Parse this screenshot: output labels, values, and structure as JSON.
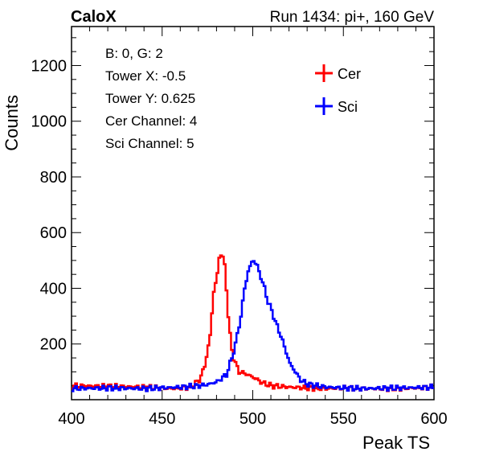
{
  "header": {
    "title": "CaloX",
    "run_label": "Run 1434: pi+, 160 GeV"
  },
  "info_box": {
    "lines": [
      "B: 0, G: 2",
      "Tower X: -0.5",
      "Tower Y: 0.625",
      "Cer Channel: 4",
      "Sci Channel: 5"
    ]
  },
  "chart_data": {
    "type": "line",
    "xlabel": "Peak TS",
    "ylabel": "Counts",
    "xlim": [
      400,
      600
    ],
    "ylim": [
      0,
      1340
    ],
    "x_ticks": [
      400,
      450,
      500,
      550,
      600
    ],
    "y_ticks": [
      200,
      400,
      600,
      800,
      1000,
      1200
    ],
    "grid": false,
    "legend_position": "top-right",
    "series": [
      {
        "name": "Cer",
        "color": "#ff0000",
        "x": [
          400,
          420,
          440,
          455,
          465,
          470,
          473,
          476,
          478,
          480,
          481,
          482,
          483,
          484,
          485,
          486,
          487,
          488,
          489,
          490,
          492,
          495,
          500,
          505,
          510,
          520,
          530,
          540,
          550,
          560,
          580,
          600
        ],
        "y": [
          50,
          48,
          45,
          40,
          45,
          70,
          120,
          230,
          390,
          450,
          510,
          525,
          510,
          480,
          400,
          300,
          230,
          180,
          150,
          130,
          100,
          95,
          80,
          60,
          50,
          45,
          42,
          40,
          42,
          40,
          40,
          45
        ]
      },
      {
        "name": "Sci",
        "color": "#0000ff",
        "x": [
          400,
          420,
          440,
          460,
          470,
          475,
          480,
          485,
          488,
          490,
          493,
          495,
          497,
          499,
          500,
          502,
          504,
          506,
          508,
          510,
          512,
          515,
          518,
          520,
          523,
          526,
          530,
          540,
          550,
          560,
          580,
          600
        ],
        "y": [
          40,
          42,
          40,
          45,
          50,
          55,
          65,
          90,
          150,
          200,
          300,
          400,
          460,
          495,
          500,
          480,
          440,
          400,
          350,
          320,
          280,
          230,
          170,
          130,
          100,
          70,
          55,
          45,
          42,
          40,
          42,
          45
        ]
      }
    ]
  }
}
